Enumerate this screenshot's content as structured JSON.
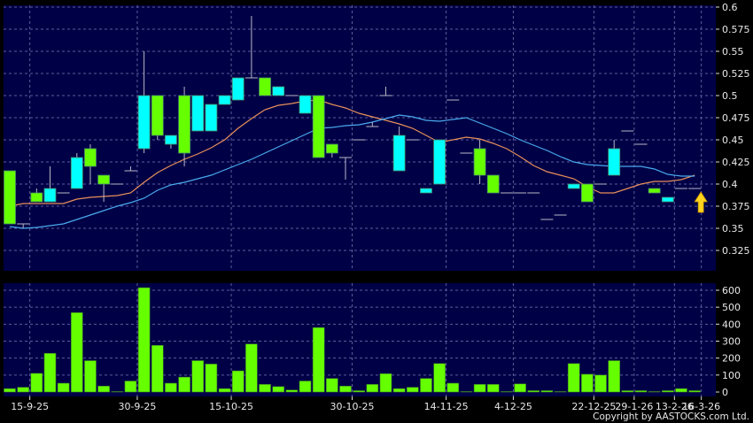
{
  "colors": {
    "panel_bg": "#000046",
    "grid": "#5c5c9c",
    "up_candle": "#00ffff",
    "down_candle": "#66ff00",
    "volume_bar": "#66ff00",
    "ma_short": "#e8905a",
    "ma_long": "#4aaaee",
    "arrow": "#ffd21e"
  },
  "copyright": "Copyright by AASTOCKS.com Ltd.",
  "chart_data": [
    {
      "type": "candlestick",
      "ylim": [
        0.3,
        0.6
      ],
      "grid": true,
      "y_ticks": [
        0.325,
        0.35,
        0.375,
        0.4,
        0.425,
        0.45,
        0.475,
        0.5,
        0.525,
        0.55,
        0.575,
        0.6
      ],
      "y_tick_labels": [
        "0.325",
        "0.35",
        "0.375",
        "0.4",
        "0.425",
        "0.45",
        "0.475",
        "0.5",
        "0.525",
        "0.55",
        "0.575",
        "0.6"
      ],
      "ohlc": [
        [
          0.415,
          0.415,
          0.355,
          0.355
        ],
        [
          0.355,
          0.355,
          0.35,
          0.355
        ],
        [
          0.39,
          0.395,
          0.38,
          0.38
        ],
        [
          0.38,
          0.42,
          0.38,
          0.395
        ],
        [
          0.39,
          0.39,
          0.39,
          0.39
        ],
        [
          0.395,
          0.435,
          0.395,
          0.43
        ],
        [
          0.44,
          0.445,
          0.4,
          0.42
        ],
        [
          0.41,
          0.41,
          0.38,
          0.4
        ],
        [
          0.4,
          0.4,
          0.4,
          0.4
        ],
        [
          0.415,
          0.42,
          0.415,
          0.415
        ],
        [
          0.44,
          0.55,
          0.435,
          0.5
        ],
        [
          0.5,
          0.5,
          0.45,
          0.455
        ],
        [
          0.445,
          0.455,
          0.44,
          0.455
        ],
        [
          0.5,
          0.51,
          0.42,
          0.435
        ],
        [
          0.46,
          0.5,
          0.46,
          0.5
        ],
        [
          0.46,
          0.49,
          0.46,
          0.49
        ],
        [
          0.49,
          0.5,
          0.49,
          0.5
        ],
        [
          0.495,
          0.52,
          0.495,
          0.52
        ],
        [
          0.52,
          0.59,
          0.52,
          0.52
        ],
        [
          0.52,
          0.52,
          0.5,
          0.5
        ],
        [
          0.5,
          0.51,
          0.5,
          0.51
        ],
        [
          0.5,
          0.5,
          0.5,
          0.5
        ],
        [
          0.48,
          0.5,
          0.48,
          0.5
        ],
        [
          0.5,
          0.5,
          0.43,
          0.43
        ],
        [
          0.445,
          0.445,
          0.43,
          0.435
        ],
        [
          0.43,
          0.43,
          0.405,
          0.43
        ],
        [
          0.45,
          0.45,
          0.45,
          0.45
        ],
        [
          0.465,
          0.47,
          0.465,
          0.465
        ],
        [
          0.5,
          0.51,
          0.5,
          0.5
        ],
        [
          0.415,
          0.465,
          0.415,
          0.455
        ],
        [
          0.45,
          0.45,
          0.45,
          0.45
        ],
        [
          0.39,
          0.395,
          0.39,
          0.395
        ],
        [
          0.4,
          0.45,
          0.4,
          0.45
        ],
        [
          0.495,
          0.495,
          0.495,
          0.495
        ],
        [
          0.435,
          0.435,
          0.435,
          0.435
        ],
        [
          0.44,
          0.45,
          0.4,
          0.41
        ],
        [
          0.41,
          0.41,
          0.39,
          0.39
        ],
        [
          0.39,
          0.39,
          0.39,
          0.39
        ],
        [
          0.39,
          0.39,
          0.39,
          0.39
        ],
        [
          0.39,
          0.39,
          0.39,
          0.39
        ],
        [
          0.36,
          0.36,
          0.36,
          0.36
        ],
        [
          0.365,
          0.365,
          0.365,
          0.365
        ],
        [
          0.395,
          0.4,
          0.395,
          0.4
        ],
        [
          0.4,
          0.4,
          0.38,
          0.38
        ],
        [
          0.4,
          0.4,
          0.4,
          0.4
        ],
        [
          0.41,
          0.45,
          0.41,
          0.44
        ],
        [
          0.46,
          0.46,
          0.46,
          0.46
        ],
        [
          0.445,
          0.445,
          0.445,
          0.445
        ],
        [
          0.395,
          0.395,
          0.39,
          0.39
        ],
        [
          0.38,
          0.385,
          0.38,
          0.385
        ],
        [
          0.395,
          0.395,
          0.395,
          0.395
        ],
        [
          0.395,
          0.395,
          0.395,
          0.395
        ]
      ],
      "ma_short": [
        0.375,
        0.378,
        0.378,
        0.378,
        0.378,
        0.383,
        0.385,
        0.386,
        0.387,
        0.39,
        0.402,
        0.413,
        0.421,
        0.428,
        0.434,
        0.441,
        0.45,
        0.463,
        0.474,
        0.484,
        0.489,
        0.491,
        0.494,
        0.495,
        0.49,
        0.486,
        0.48,
        0.476,
        0.472,
        0.468,
        0.463,
        0.455,
        0.447,
        0.45,
        0.453,
        0.451,
        0.446,
        0.44,
        0.431,
        0.421,
        0.414,
        0.41,
        0.406,
        0.397,
        0.39,
        0.39,
        0.395,
        0.4,
        0.403,
        0.403,
        0.405,
        0.41
      ],
      "ma_long": [
        0.352,
        0.35,
        0.351,
        0.353,
        0.355,
        0.36,
        0.365,
        0.37,
        0.375,
        0.379,
        0.384,
        0.393,
        0.399,
        0.402,
        0.406,
        0.41,
        0.416,
        0.422,
        0.428,
        0.435,
        0.442,
        0.449,
        0.456,
        0.463,
        0.464,
        0.466,
        0.467,
        0.47,
        0.474,
        0.478,
        0.476,
        0.472,
        0.471,
        0.473,
        0.475,
        0.469,
        0.463,
        0.457,
        0.45,
        0.444,
        0.438,
        0.431,
        0.425,
        0.422,
        0.421,
        0.42,
        0.42,
        0.42,
        0.417,
        0.411,
        0.409,
        0.409
      ],
      "marker": {
        "type": "up-arrow",
        "candle_index": 51
      }
    },
    {
      "type": "bar",
      "ylim": [
        0,
        650
      ],
      "grid": true,
      "y_ticks": [
        0,
        100,
        200,
        300,
        400,
        500,
        600
      ],
      "y_tick_labels": [
        "0",
        "100",
        "200",
        "300",
        "400",
        "500",
        "600"
      ],
      "values": [
        20,
        28,
        110,
        228,
        52,
        468,
        185,
        35,
        3,
        65,
        615,
        275,
        52,
        88,
        185,
        165,
        20,
        125,
        283,
        45,
        32,
        12,
        65,
        380,
        80,
        35,
        8,
        45,
        108,
        20,
        28,
        80,
        168,
        52,
        3,
        45,
        45,
        3,
        48,
        8,
        8,
        3,
        168,
        105,
        100,
        185,
        8,
        8,
        3,
        8,
        20,
        8
      ]
    }
  ],
  "x_axis": {
    "labels": [
      {
        "text": "15-9-25",
        "candle_index": 1
      },
      {
        "text": "30-9-25",
        "candle_index": 9
      },
      {
        "text": "15-10-25",
        "candle_index": 16
      },
      {
        "text": "30-10-25",
        "candle_index": 25
      },
      {
        "text": "14-11-25",
        "candle_index": 32
      },
      {
        "text": "4-12-25",
        "candle_index": 37
      },
      {
        "text": "22-12-25",
        "candle_index": 43
      },
      {
        "text": "29-1-26",
        "candle_index": 46
      },
      {
        "text": "13-2-26",
        "candle_index": 49
      },
      {
        "text": "16-3-26",
        "candle_index": 51
      }
    ]
  }
}
